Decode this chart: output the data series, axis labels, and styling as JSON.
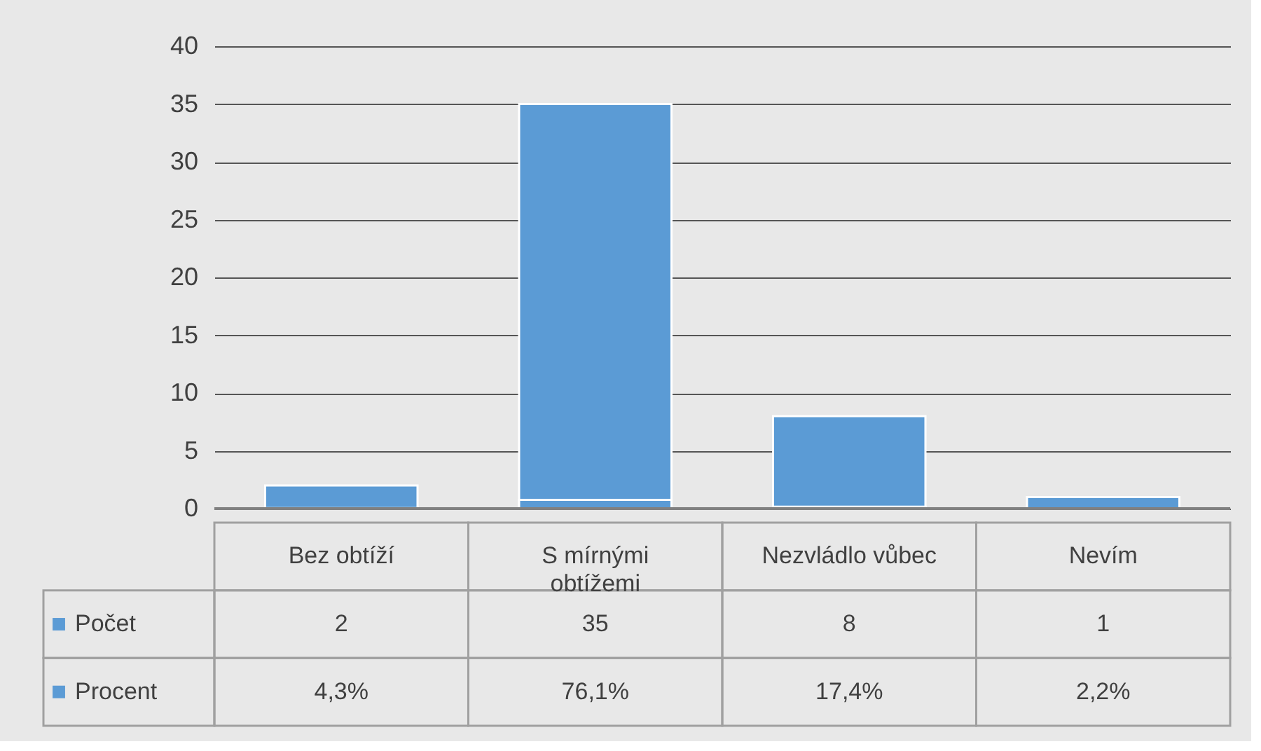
{
  "chart_data": {
    "type": "bar",
    "categories": [
      "Bez obtíží",
      "S mírnými obtížemi",
      "Nezvládlo vůbec",
      "Nevím"
    ],
    "series": [
      {
        "name": "Počet",
        "color": "#5b9bd5",
        "values": [
          2,
          35,
          8,
          1
        ],
        "value_labels": [
          "2",
          "35",
          "8",
          "1"
        ]
      },
      {
        "name": "Procent",
        "color": "#5b9bd5",
        "values": [
          0.043,
          0.761,
          0.174,
          0.022
        ],
        "value_labels": [
          "4,3%",
          "76,1%",
          "17,4%",
          "2,2%"
        ]
      }
    ],
    "ylim": [
      0,
      40
    ],
    "yticks": [
      0,
      5,
      10,
      15,
      20,
      25,
      30,
      35,
      40
    ],
    "grid": "y",
    "legend": "bottom left"
  }
}
